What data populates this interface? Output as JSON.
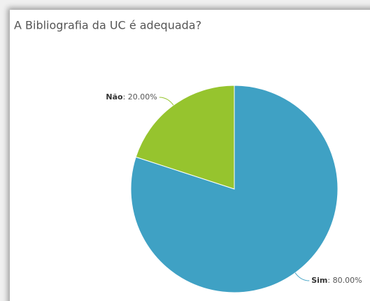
{
  "chart_data": {
    "type": "pie",
    "title": "A Bibliografia da UC é adequada?",
    "categories": [
      "Sim",
      "Não"
    ],
    "values": [
      80,
      20
    ],
    "value_labels": [
      ": 80.00%",
      ": 20.00%"
    ],
    "colors": [
      "#3fa1c4",
      "#96c42e"
    ]
  }
}
